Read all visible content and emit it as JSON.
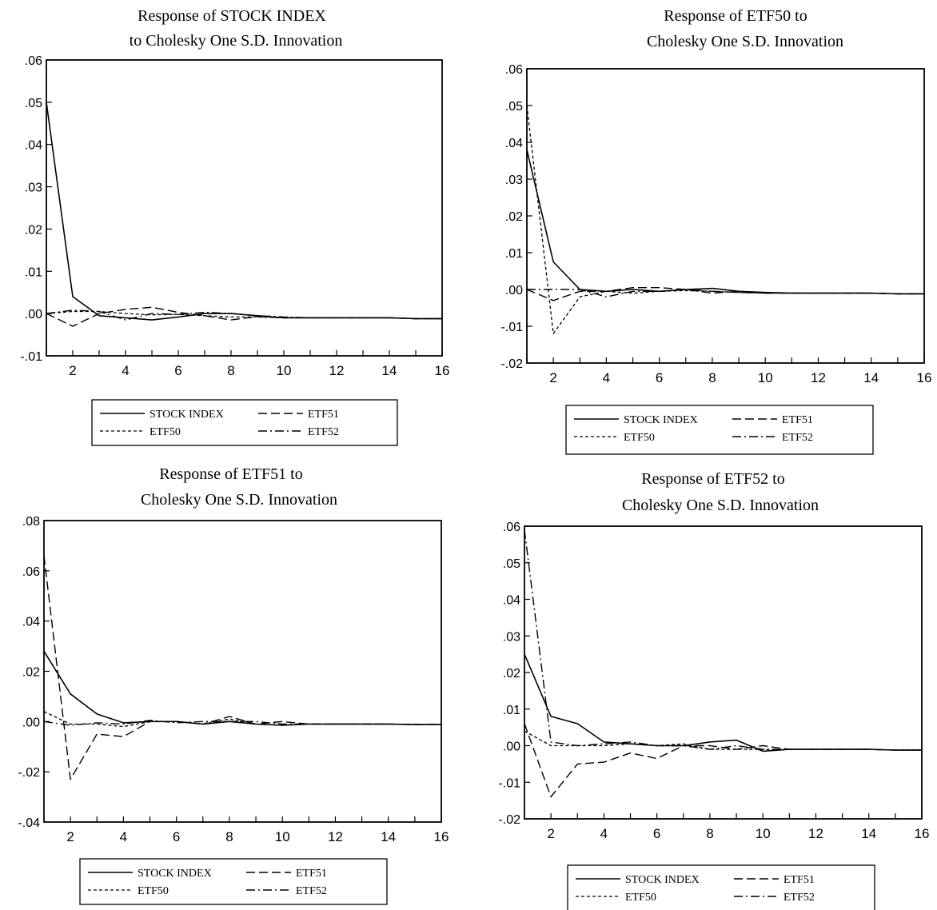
{
  "series_styles": {
    "STOCK INDEX": {
      "dash": "",
      "width": 1.6
    },
    "ETF50": {
      "dash": "4,3",
      "width": 1.3
    },
    "ETF51": {
      "dash": "11,5",
      "width": 1.4
    },
    "ETF52": {
      "dash": "11,4,2,4",
      "width": 1.4
    }
  },
  "chart_data": [
    {
      "type": "line",
      "title": [
        "Response of STOCK INDEX",
        "to Cholesky One S.D. Innovation"
      ],
      "x": [
        1,
        2,
        3,
        4,
        5,
        6,
        7,
        8,
        9,
        10,
        11,
        12,
        13,
        14,
        15,
        16
      ],
      "xticks": [
        "2",
        "4",
        "6",
        "8",
        "10",
        "12",
        "14",
        "16"
      ],
      "ylim": [
        -0.01,
        0.06
      ],
      "yticks": [
        ".06",
        ".05",
        ".04",
        ".03",
        ".02",
        ".01",
        ".00",
        "-.01"
      ],
      "series": [
        {
          "name": "STOCK INDEX",
          "values": [
            0.05,
            0.004,
            -0.0005,
            -0.001,
            -0.0015,
            -0.0008,
            0.0,
            0.0,
            -0.0005,
            -0.001,
            -0.001,
            -0.001,
            -0.001,
            -0.001,
            -0.0012,
            -0.0012
          ]
        },
        {
          "name": "ETF50",
          "values": [
            0.0,
            0.0005,
            0.0005,
            0.0,
            -0.0003,
            -0.0002,
            -0.0005,
            -0.0008,
            -0.0008,
            -0.001,
            -0.001,
            -0.001,
            -0.001,
            -0.001,
            -0.0012,
            -0.0012
          ]
        },
        {
          "name": "ETF51",
          "values": [
            0.0,
            -0.003,
            0.0,
            0.001,
            0.0015,
            0.0003,
            -0.0005,
            -0.0015,
            -0.0007,
            -0.001,
            -0.001,
            -0.001,
            -0.001,
            -0.001,
            -0.0012,
            -0.0012
          ]
        },
        {
          "name": "ETF52",
          "values": [
            0.0,
            0.0008,
            0.0005,
            -0.0015,
            0.0,
            -0.0002,
            0.0003,
            0.0,
            -0.0005,
            -0.0008,
            -0.001,
            -0.001,
            -0.001,
            -0.001,
            -0.0012,
            -0.0012
          ]
        }
      ],
      "legend": [
        "STOCK INDEX",
        "ETF51",
        "ETF50",
        "ETF52"
      ]
    },
    {
      "type": "line",
      "title": [
        "Response of  ETF50 to",
        "Cholesky One S.D. Innovation"
      ],
      "x": [
        1,
        2,
        3,
        4,
        5,
        6,
        7,
        8,
        9,
        10,
        11,
        12,
        13,
        14,
        15,
        16
      ],
      "xticks": [
        "2",
        "4",
        "6",
        "8",
        "10",
        "12",
        "14",
        "16"
      ],
      "ylim": [
        -0.02,
        0.06
      ],
      "yticks": [
        ".06",
        ".05",
        ".04",
        ".03",
        ".02",
        ".01",
        ".00",
        "-.01",
        "-.02"
      ],
      "series": [
        {
          "name": "STOCK INDEX",
          "values": [
            0.038,
            0.0075,
            0.0,
            -0.0005,
            0.0,
            -0.0005,
            0.0,
            0.0003,
            -0.0005,
            -0.0008,
            -0.001,
            -0.001,
            -0.001,
            -0.001,
            -0.0012,
            -0.0012
          ]
        },
        {
          "name": "ETF50",
          "values": [
            0.05,
            -0.012,
            -0.002,
            -0.0005,
            -0.001,
            -0.0005,
            -0.0003,
            -0.0005,
            -0.0008,
            -0.001,
            -0.001,
            -0.001,
            -0.001,
            -0.001,
            -0.0012,
            -0.0012
          ]
        },
        {
          "name": "ETF51",
          "values": [
            0.0,
            -0.003,
            -0.0005,
            -0.0005,
            0.0005,
            0.0005,
            0.0,
            -0.001,
            -0.0005,
            -0.001,
            -0.001,
            -0.001,
            -0.001,
            -0.001,
            -0.0012,
            -0.0012
          ]
        },
        {
          "name": "ETF52",
          "values": [
            0.0,
            0.0,
            0.0,
            -0.002,
            -0.0005,
            -0.0005,
            0.0,
            -0.0005,
            -0.0008,
            -0.001,
            -0.001,
            -0.001,
            -0.001,
            -0.001,
            -0.0012,
            -0.0012
          ]
        }
      ],
      "legend": [
        "STOCK INDEX",
        "ETF51",
        "ETF50",
        "ETF52"
      ]
    },
    {
      "type": "line",
      "title": [
        "Response of ETF51 to",
        "Cholesky One S.D. Innovation"
      ],
      "x": [
        1,
        2,
        3,
        4,
        5,
        6,
        7,
        8,
        9,
        10,
        11,
        12,
        13,
        14,
        15,
        16
      ],
      "xticks": [
        "2",
        "4",
        "6",
        "8",
        "10",
        "12",
        "14",
        "16"
      ],
      "ylim": [
        -0.04,
        0.08
      ],
      "yticks": [
        ".08",
        ".06",
        ".04",
        ".02",
        ".00",
        "-.02",
        "-.04"
      ],
      "series": [
        {
          "name": "STOCK INDEX",
          "values": [
            0.028,
            0.011,
            0.003,
            -0.0005,
            0.0,
            0.0,
            -0.001,
            0.0,
            -0.001,
            -0.0015,
            -0.001,
            -0.001,
            -0.001,
            -0.001,
            -0.0012,
            -0.0012
          ]
        },
        {
          "name": "ETF50",
          "values": [
            0.004,
            -0.001,
            -0.001,
            -0.002,
            0.0,
            0.0,
            -0.001,
            0.001,
            -0.001,
            -0.0015,
            -0.001,
            -0.001,
            -0.001,
            -0.001,
            -0.0012,
            -0.0012
          ]
        },
        {
          "name": "ETF51",
          "values": [
            0.066,
            -0.023,
            -0.005,
            -0.006,
            0.0,
            0.0,
            -0.001,
            0.002,
            -0.001,
            0.0,
            -0.001,
            -0.001,
            -0.001,
            -0.001,
            -0.0012,
            -0.0012
          ]
        },
        {
          "name": "ETF52",
          "values": [
            0.0,
            -0.0015,
            -0.0005,
            -0.001,
            0.0005,
            -0.0005,
            0.0,
            0.0,
            0.0,
            -0.001,
            -0.001,
            -0.001,
            -0.001,
            -0.001,
            -0.0012,
            -0.0012
          ]
        }
      ],
      "legend": [
        "STOCK INDEX",
        "ETF51",
        "ETF50",
        "ETF52"
      ]
    },
    {
      "type": "line",
      "title": [
        "Response of ETF52 to",
        "Cholesky One S.D. Innovation"
      ],
      "x": [
        1,
        2,
        3,
        4,
        5,
        6,
        7,
        8,
        9,
        10,
        11,
        12,
        13,
        14,
        15,
        16
      ],
      "xticks": [
        "2",
        "4",
        "6",
        "8",
        "10",
        "12",
        "14",
        "16"
      ],
      "ylim": [
        -0.02,
        0.06
      ],
      "yticks": [
        ".06",
        ".05",
        ".04",
        ".03",
        ".02",
        ".01",
        ".00",
        "-.01",
        "-.02"
      ],
      "series": [
        {
          "name": "STOCK INDEX",
          "values": [
            0.025,
            0.008,
            0.006,
            0.001,
            0.0005,
            0.0,
            0.0,
            0.001,
            0.0015,
            -0.0015,
            -0.001,
            -0.001,
            -0.001,
            -0.001,
            -0.0012,
            -0.0012
          ]
        },
        {
          "name": "ETF50",
          "values": [
            0.004,
            0.0,
            0.0,
            0.0,
            0.0005,
            0.0,
            0.0005,
            -0.001,
            -0.001,
            -0.001,
            -0.001,
            -0.001,
            -0.001,
            -0.001,
            -0.0012,
            -0.0012
          ]
        },
        {
          "name": "ETF51",
          "values": [
            0.006,
            -0.014,
            -0.005,
            -0.0045,
            -0.002,
            -0.0035,
            0.0,
            0.0,
            -0.001,
            0.0,
            -0.001,
            -0.001,
            -0.001,
            -0.001,
            -0.0012,
            -0.0012
          ]
        },
        {
          "name": "ETF52",
          "values": [
            0.059,
            0.001,
            0.0,
            0.0005,
            0.001,
            0.0,
            0.0,
            -0.001,
            0.0,
            -0.001,
            -0.001,
            -0.001,
            -0.001,
            -0.001,
            -0.0012,
            -0.0012
          ]
        }
      ],
      "legend": [
        "STOCK INDEX",
        "ETF51",
        "ETF50",
        "ETF52"
      ]
    }
  ]
}
